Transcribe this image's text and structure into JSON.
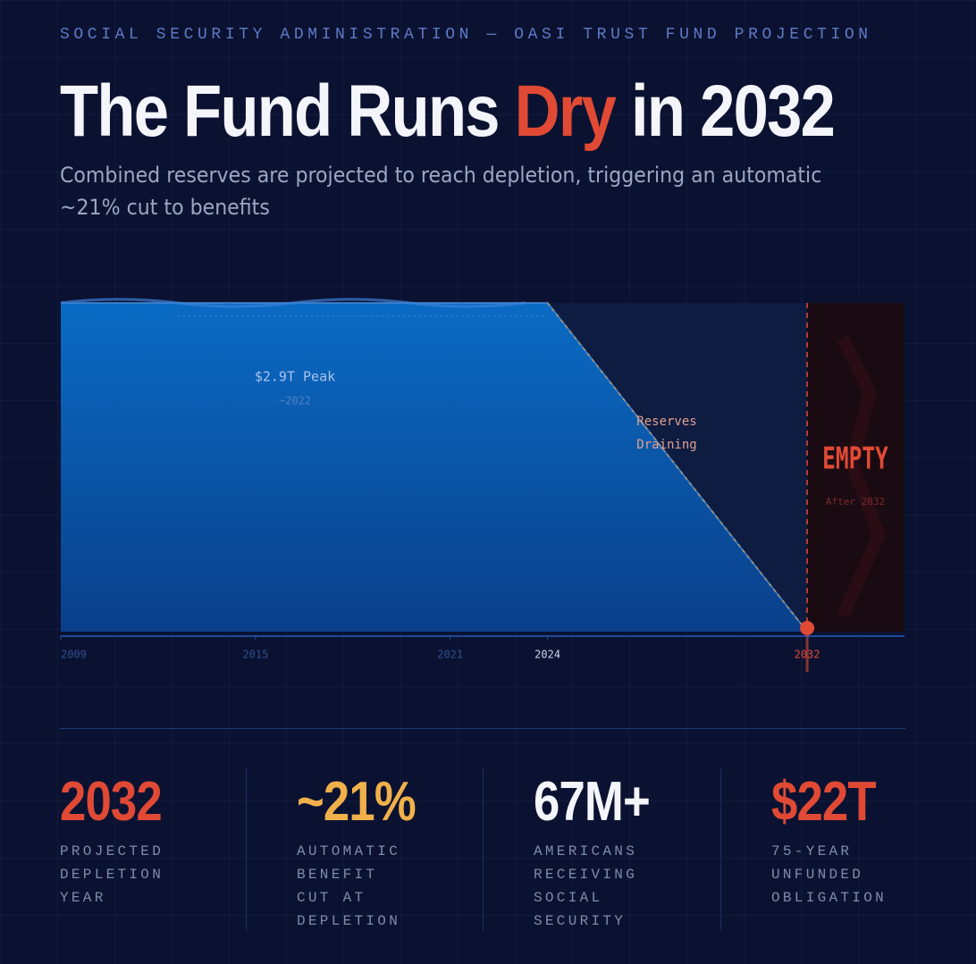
{
  "header": {
    "kicker": "SOCIAL SECURITY ADMINISTRATION — OASI TRUST FUND PROJECTION",
    "title_parts": [
      "The Fund Runs ",
      "Dry",
      " in 2032"
    ],
    "subtitle": "Combined reserves are projected to reach depletion, triggering an automatic ~21% cut to benefits"
  },
  "chart_data": {
    "type": "area",
    "x": [
      2009,
      2024,
      2032
    ],
    "values": [
      2.9,
      2.9,
      0
    ],
    "xlim": [
      2009,
      2035
    ],
    "ylim": [
      0,
      2.9
    ],
    "xticks": [
      2009,
      2015,
      2021,
      2024,
      2032
    ],
    "grid": false,
    "color": "#0a66c2",
    "empty_color": "#e04a35",
    "annotations": {
      "peak": "$2.9T Peak",
      "peak_year": "~2022",
      "draining": [
        "Reserves",
        "Draining"
      ],
      "empty": "EMPTY",
      "after": "After 2032"
    }
  },
  "stats": [
    {
      "value": "2032",
      "label": "PROJECTED DEPLETION YEAR",
      "color": "#e04a35"
    },
    {
      "value": "~21%",
      "label": "AUTOMATIC BENEFIT CUT AT DEPLETION",
      "color": "#f0b04a"
    },
    {
      "value": "67M+",
      "label": "AMERICANS RECEIVING SOCIAL SECURITY",
      "color": "#f4f5fa"
    },
    {
      "value": "$22T",
      "label": "75-YEAR UNFUNDED OBLIGATION",
      "color": "#e04a35"
    }
  ]
}
